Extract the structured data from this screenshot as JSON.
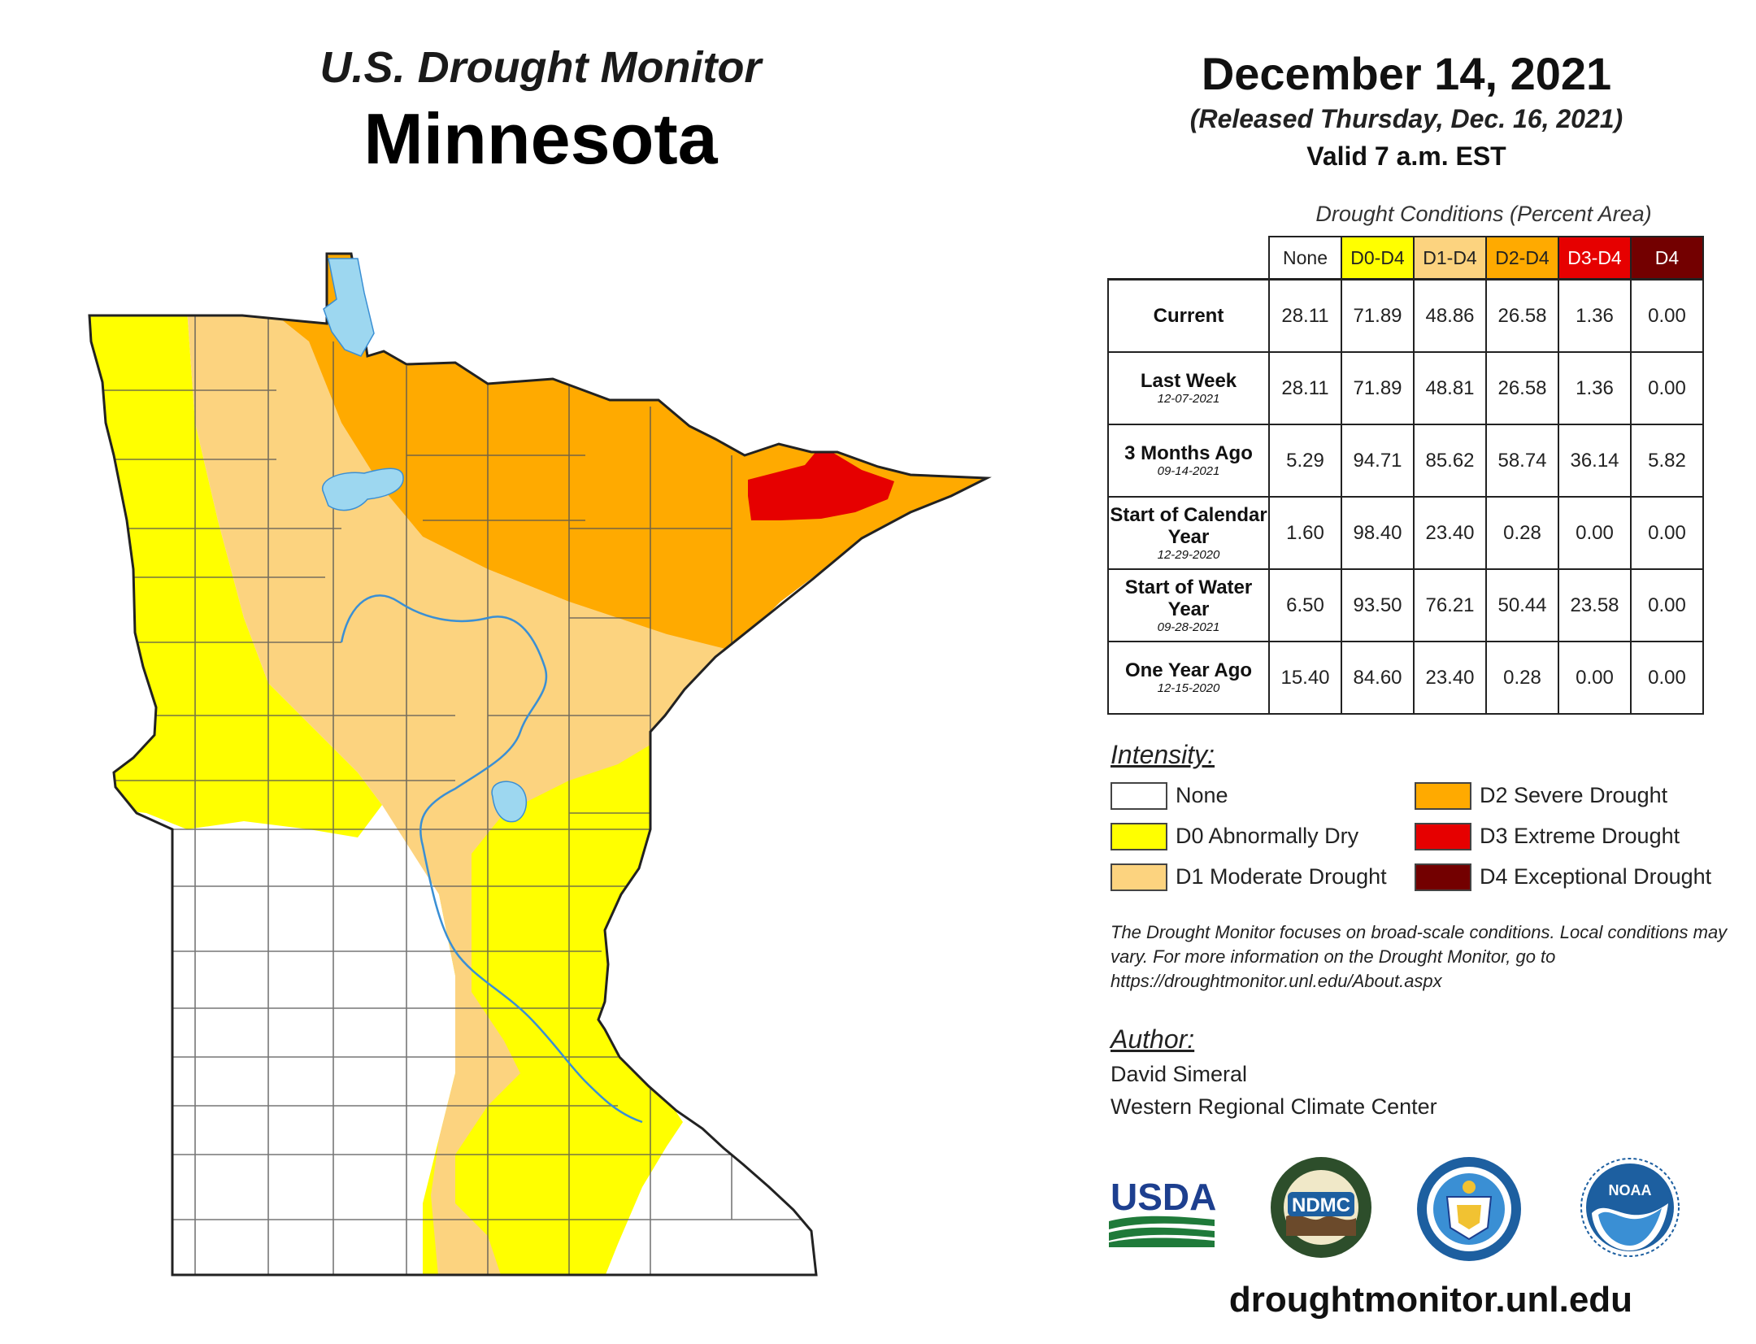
{
  "header": {
    "monitor_title": "U.S. Drought Monitor",
    "state": "Minnesota",
    "date": "December 14, 2021",
    "released": "(Released Thursday, Dec. 16, 2021)",
    "valid": "Valid 7 a.m. EST"
  },
  "table": {
    "caption": "Drought Conditions (Percent Area)",
    "columns": [
      {
        "label": "None",
        "color": "#ffffff",
        "text_color": "#222222"
      },
      {
        "label": "D0-D4",
        "color": "#ffff00",
        "text_color": "#222222"
      },
      {
        "label": "D1-D4",
        "color": "#fcd37f",
        "text_color": "#222222"
      },
      {
        "label": "D2-D4",
        "color": "#ffaa00",
        "text_color": "#222222"
      },
      {
        "label": "D3-D4",
        "color": "#e60000",
        "text_color": "#ffffff"
      },
      {
        "label": "D4",
        "color": "#730000",
        "text_color": "#ffffff"
      }
    ],
    "rows": [
      {
        "label": "Current",
        "date": "",
        "values": [
          "28.11",
          "71.89",
          "48.86",
          "26.58",
          "1.36",
          "0.00"
        ]
      },
      {
        "label": "Last Week",
        "date": "12-07-2021",
        "values": [
          "28.11",
          "71.89",
          "48.81",
          "26.58",
          "1.36",
          "0.00"
        ]
      },
      {
        "label": "3 Months Ago",
        "date": "09-14-2021",
        "values": [
          "5.29",
          "94.71",
          "85.62",
          "58.74",
          "36.14",
          "5.82"
        ]
      },
      {
        "label": "Start of Calendar Year",
        "date": "12-29-2020",
        "values": [
          "1.60",
          "98.40",
          "23.40",
          "0.28",
          "0.00",
          "0.00"
        ]
      },
      {
        "label": "Start of Water Year",
        "date": "09-28-2021",
        "values": [
          "6.50",
          "93.50",
          "76.21",
          "50.44",
          "23.58",
          "0.00"
        ]
      },
      {
        "label": "One Year Ago",
        "date": "12-15-2020",
        "values": [
          "15.40",
          "84.60",
          "23.40",
          "0.28",
          "0.00",
          "0.00"
        ]
      }
    ]
  },
  "legend": {
    "title": "Intensity:",
    "items": [
      {
        "label": "None",
        "color": "#ffffff"
      },
      {
        "label": "D0 Abnormally Dry",
        "color": "#ffff00"
      },
      {
        "label": "D1 Moderate Drought",
        "color": "#fcd37f"
      },
      {
        "label": "D2 Severe Drought",
        "color": "#ffaa00"
      },
      {
        "label": "D3 Extreme Drought",
        "color": "#e60000"
      },
      {
        "label": "D4 Exceptional Drought",
        "color": "#730000"
      }
    ]
  },
  "note": "The Drought Monitor focuses on broad-scale conditions. Local conditions may vary. For more information on the Drought Monitor, go to https://droughtmonitor.unl.edu/About.aspx",
  "author": {
    "title": "Author:",
    "name": "David Simeral",
    "org": "Western Regional Climate Center"
  },
  "logos": {
    "usda": "USDA",
    "ndmc": "NDMC",
    "noaa": "NOAA"
  },
  "url": "droughtmonitor.unl.edu",
  "colors": {
    "none": "#ffffff",
    "d0": "#ffff00",
    "d1": "#fcd37f",
    "d2": "#ffaa00",
    "d3": "#e60000",
    "d4": "#730000",
    "water": "#9dd7f0",
    "river": "#3a8fd4"
  }
}
